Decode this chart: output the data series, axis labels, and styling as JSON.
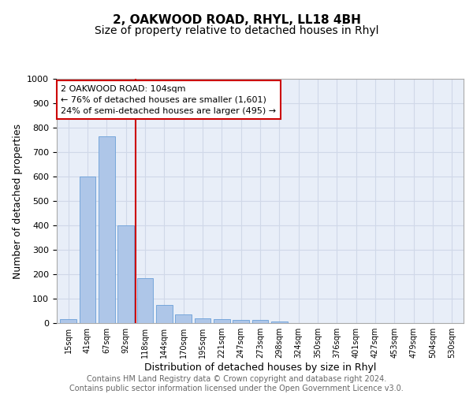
{
  "title": "2, OAKWOOD ROAD, RHYL, LL18 4BH",
  "subtitle": "Size of property relative to detached houses in Rhyl",
  "xlabel": "Distribution of detached houses by size in Rhyl",
  "ylabel": "Number of detached properties",
  "footer_line1": "Contains HM Land Registry data © Crown copyright and database right 2024.",
  "footer_line2": "Contains public sector information licensed under the Open Government Licence v3.0.",
  "bar_labels": [
    "15sqm",
    "41sqm",
    "67sqm",
    "92sqm",
    "118sqm",
    "144sqm",
    "170sqm",
    "195sqm",
    "221sqm",
    "247sqm",
    "273sqm",
    "298sqm",
    "324sqm",
    "350sqm",
    "376sqm",
    "401sqm",
    "427sqm",
    "453sqm",
    "479sqm",
    "504sqm",
    "530sqm"
  ],
  "bar_values": [
    15,
    600,
    765,
    400,
    185,
    75,
    35,
    18,
    15,
    13,
    13,
    8,
    0,
    0,
    0,
    0,
    0,
    0,
    0,
    0,
    0
  ],
  "bar_color": "#aec6e8",
  "bar_edge_color": "#6a9fd8",
  "vline_x": 3.5,
  "vline_color": "#cc0000",
  "annotation_text": "2 OAKWOOD ROAD: 104sqm\n← 76% of detached houses are smaller (1,601)\n24% of semi-detached houses are larger (495) →",
  "annotation_box_color": "#ffffff",
  "annotation_border_color": "#cc0000",
  "ylim": [
    0,
    1000
  ],
  "yticks": [
    0,
    100,
    200,
    300,
    400,
    500,
    600,
    700,
    800,
    900,
    1000
  ],
  "grid_color": "#d0d8e8",
  "background_color": "#e8eef8",
  "title_fontsize": 11,
  "subtitle_fontsize": 10,
  "axis_fontsize": 9,
  "tick_fontsize": 8,
  "footer_fontsize": 7,
  "annotation_fontsize": 8
}
